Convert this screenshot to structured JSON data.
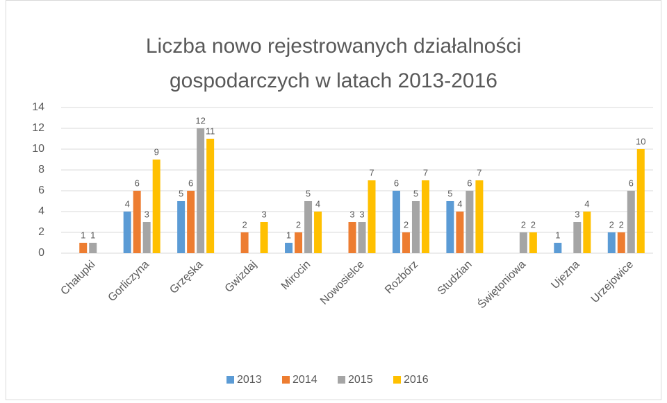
{
  "chart_data": {
    "type": "bar",
    "title": "Liczba nowo rejestrowanych działalności gospodarczych w latach 2013-2016",
    "categories": [
      "Chałupki",
      "Gorliczyna",
      "Grzęska",
      "Gwizdaj",
      "Mirocin",
      "Nowosielce",
      "Rozbórz",
      "Studzian",
      "Świętoniowa",
      "Ujezna",
      "Urzejowice"
    ],
    "series": [
      {
        "name": "2013",
        "color": "#5b9bd5",
        "values": [
          null,
          4,
          5,
          null,
          1,
          null,
          6,
          5,
          null,
          1,
          2
        ]
      },
      {
        "name": "2014",
        "color": "#ed7d31",
        "values": [
          1,
          6,
          6,
          2,
          2,
          3,
          2,
          4,
          null,
          null,
          2
        ]
      },
      {
        "name": "2015",
        "color": "#a5a5a5",
        "values": [
          1,
          3,
          12,
          null,
          5,
          3,
          5,
          6,
          2,
          3,
          6
        ]
      },
      {
        "name": "2016",
        "color": "#ffc000",
        "values": [
          null,
          9,
          11,
          3,
          4,
          7,
          7,
          7,
          2,
          4,
          10
        ]
      }
    ],
    "ylim": [
      0,
      14
    ],
    "yticks": [
      0,
      2,
      4,
      6,
      8,
      10,
      12,
      14
    ],
    "grid": true,
    "legend": "bottom",
    "data_labels": true
  }
}
